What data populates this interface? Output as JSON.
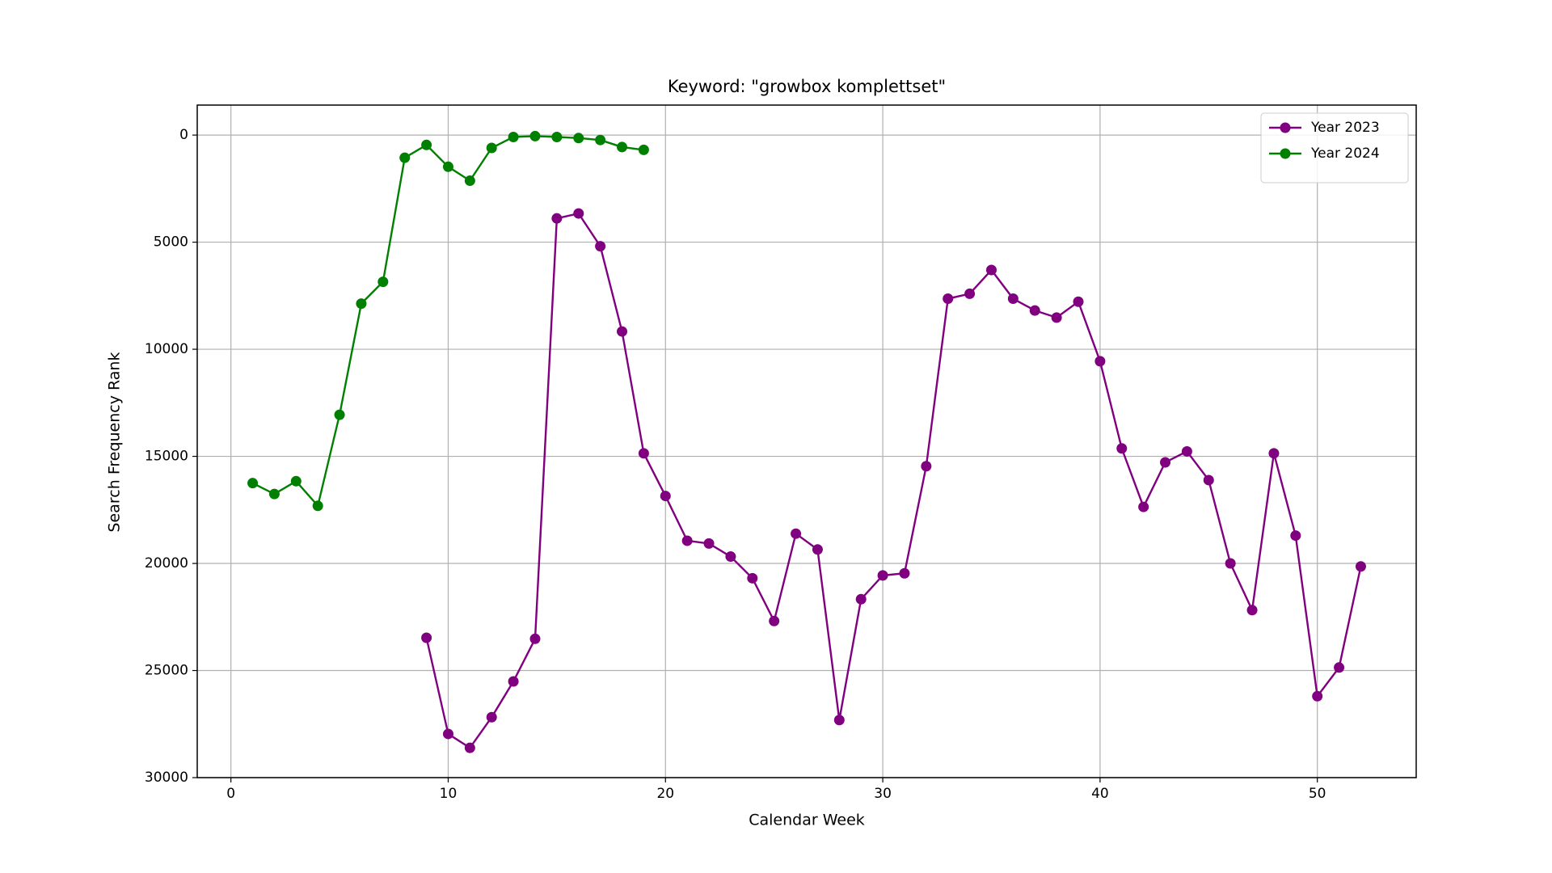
{
  "chart_data": {
    "type": "line",
    "title": "Keyword: \"growbox komplettset\"",
    "xlabel": "Calendar Week",
    "ylabel": "Search Frequency Rank",
    "xlim": [
      -1.55,
      54.55
    ],
    "ylim": [
      -1400,
      30000
    ],
    "y_inverted": true,
    "xticks": [
      0,
      10,
      20,
      30,
      40,
      50
    ],
    "yticks": [
      0,
      5000,
      10000,
      15000,
      20000,
      25000,
      30000
    ],
    "grid": true,
    "legend": "upper right",
    "series": [
      {
        "name": "Year 2023",
        "color": "#800080",
        "x": [
          9,
          10,
          11,
          12,
          13,
          14,
          15,
          16,
          17,
          18,
          19,
          20,
          21,
          22,
          23,
          24,
          25,
          26,
          27,
          28,
          29,
          30,
          31,
          32,
          33,
          34,
          35,
          36,
          37,
          38,
          39,
          40,
          41,
          42,
          43,
          44,
          45,
          46,
          47,
          48,
          49,
          50,
          51,
          52
        ],
        "values": [
          23470,
          27960,
          28610,
          27180,
          25510,
          23520,
          3890,
          3660,
          5190,
          9170,
          14860,
          16850,
          18940,
          19070,
          19680,
          20690,
          22690,
          18610,
          19350,
          27310,
          21670,
          20560,
          20460,
          15460,
          7640,
          7410,
          6300,
          7640,
          8190,
          8520,
          7780,
          10560,
          14630,
          17360,
          15280,
          14770,
          16110,
          20000,
          22180,
          14860,
          18700,
          26200,
          24860,
          20140
        ]
      },
      {
        "name": "Year 2024",
        "color": "#008000",
        "x": [
          1,
          2,
          3,
          4,
          5,
          6,
          7,
          8,
          9,
          10,
          11,
          12,
          13,
          14,
          15,
          16,
          17,
          18,
          19
        ],
        "values": [
          16250,
          16760,
          16160,
          17310,
          13060,
          7870,
          6850,
          1060,
          460,
          1480,
          2130,
          600,
          90,
          50,
          90,
          140,
          230,
          560,
          690
        ]
      }
    ]
  }
}
